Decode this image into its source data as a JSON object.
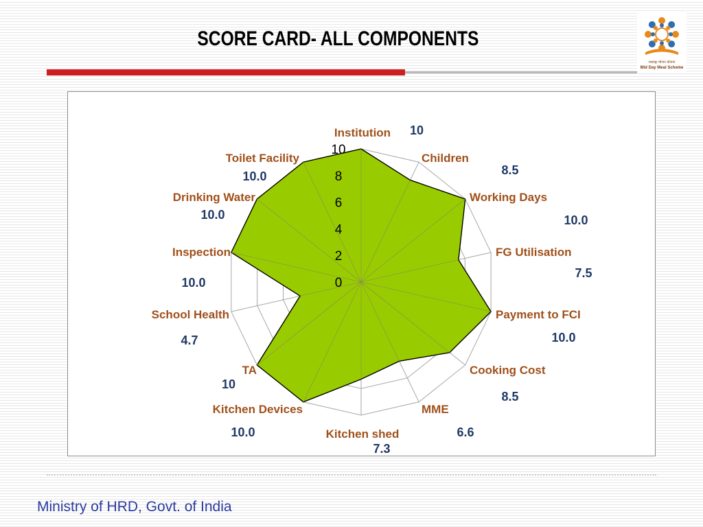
{
  "slide": {
    "title": "SCORE CARD- ALL COMPONENTS",
    "footer": "Ministry of HRD, Govt. of India",
    "logo_caption_hindi": "मध्याह्न भोजन योजना",
    "logo_caption_english": "Mid Day Meal Scheme"
  },
  "colors": {
    "fill": "#99cc00",
    "outline": "#000000",
    "category_label": "#a0501a",
    "value_label": "#1f3864",
    "grid": "#a6a6a6",
    "accent_rule": "#cc2020"
  },
  "chart_data": {
    "type": "radar",
    "title": "",
    "categories": [
      "Institution",
      "Children",
      "Working Days",
      "FG Utilisation",
      "Payment to FCI",
      "Cooking Cost",
      "MME",
      "Kitchen shed",
      "Kitchen Devices",
      "TA",
      "School Health",
      "Inspection",
      "Drinking Water",
      "Toilet Facility"
    ],
    "values": [
      10,
      8.5,
      10,
      7.5,
      10,
      8.5,
      6.6,
      7.3,
      10,
      10,
      4.7,
      10,
      10,
      10
    ],
    "value_labels": [
      "10",
      "8.5",
      "10.0",
      "7.5",
      "10.0",
      "8.5",
      "6.6",
      "7.3",
      "10.0",
      "10",
      "4.7",
      "10.0",
      "10.0",
      "10.0"
    ],
    "axis_ticks": [
      "0",
      "2",
      "4",
      "6",
      "8",
      "10"
    ],
    "range": [
      0,
      10
    ],
    "grid": true,
    "legend": "none"
  }
}
